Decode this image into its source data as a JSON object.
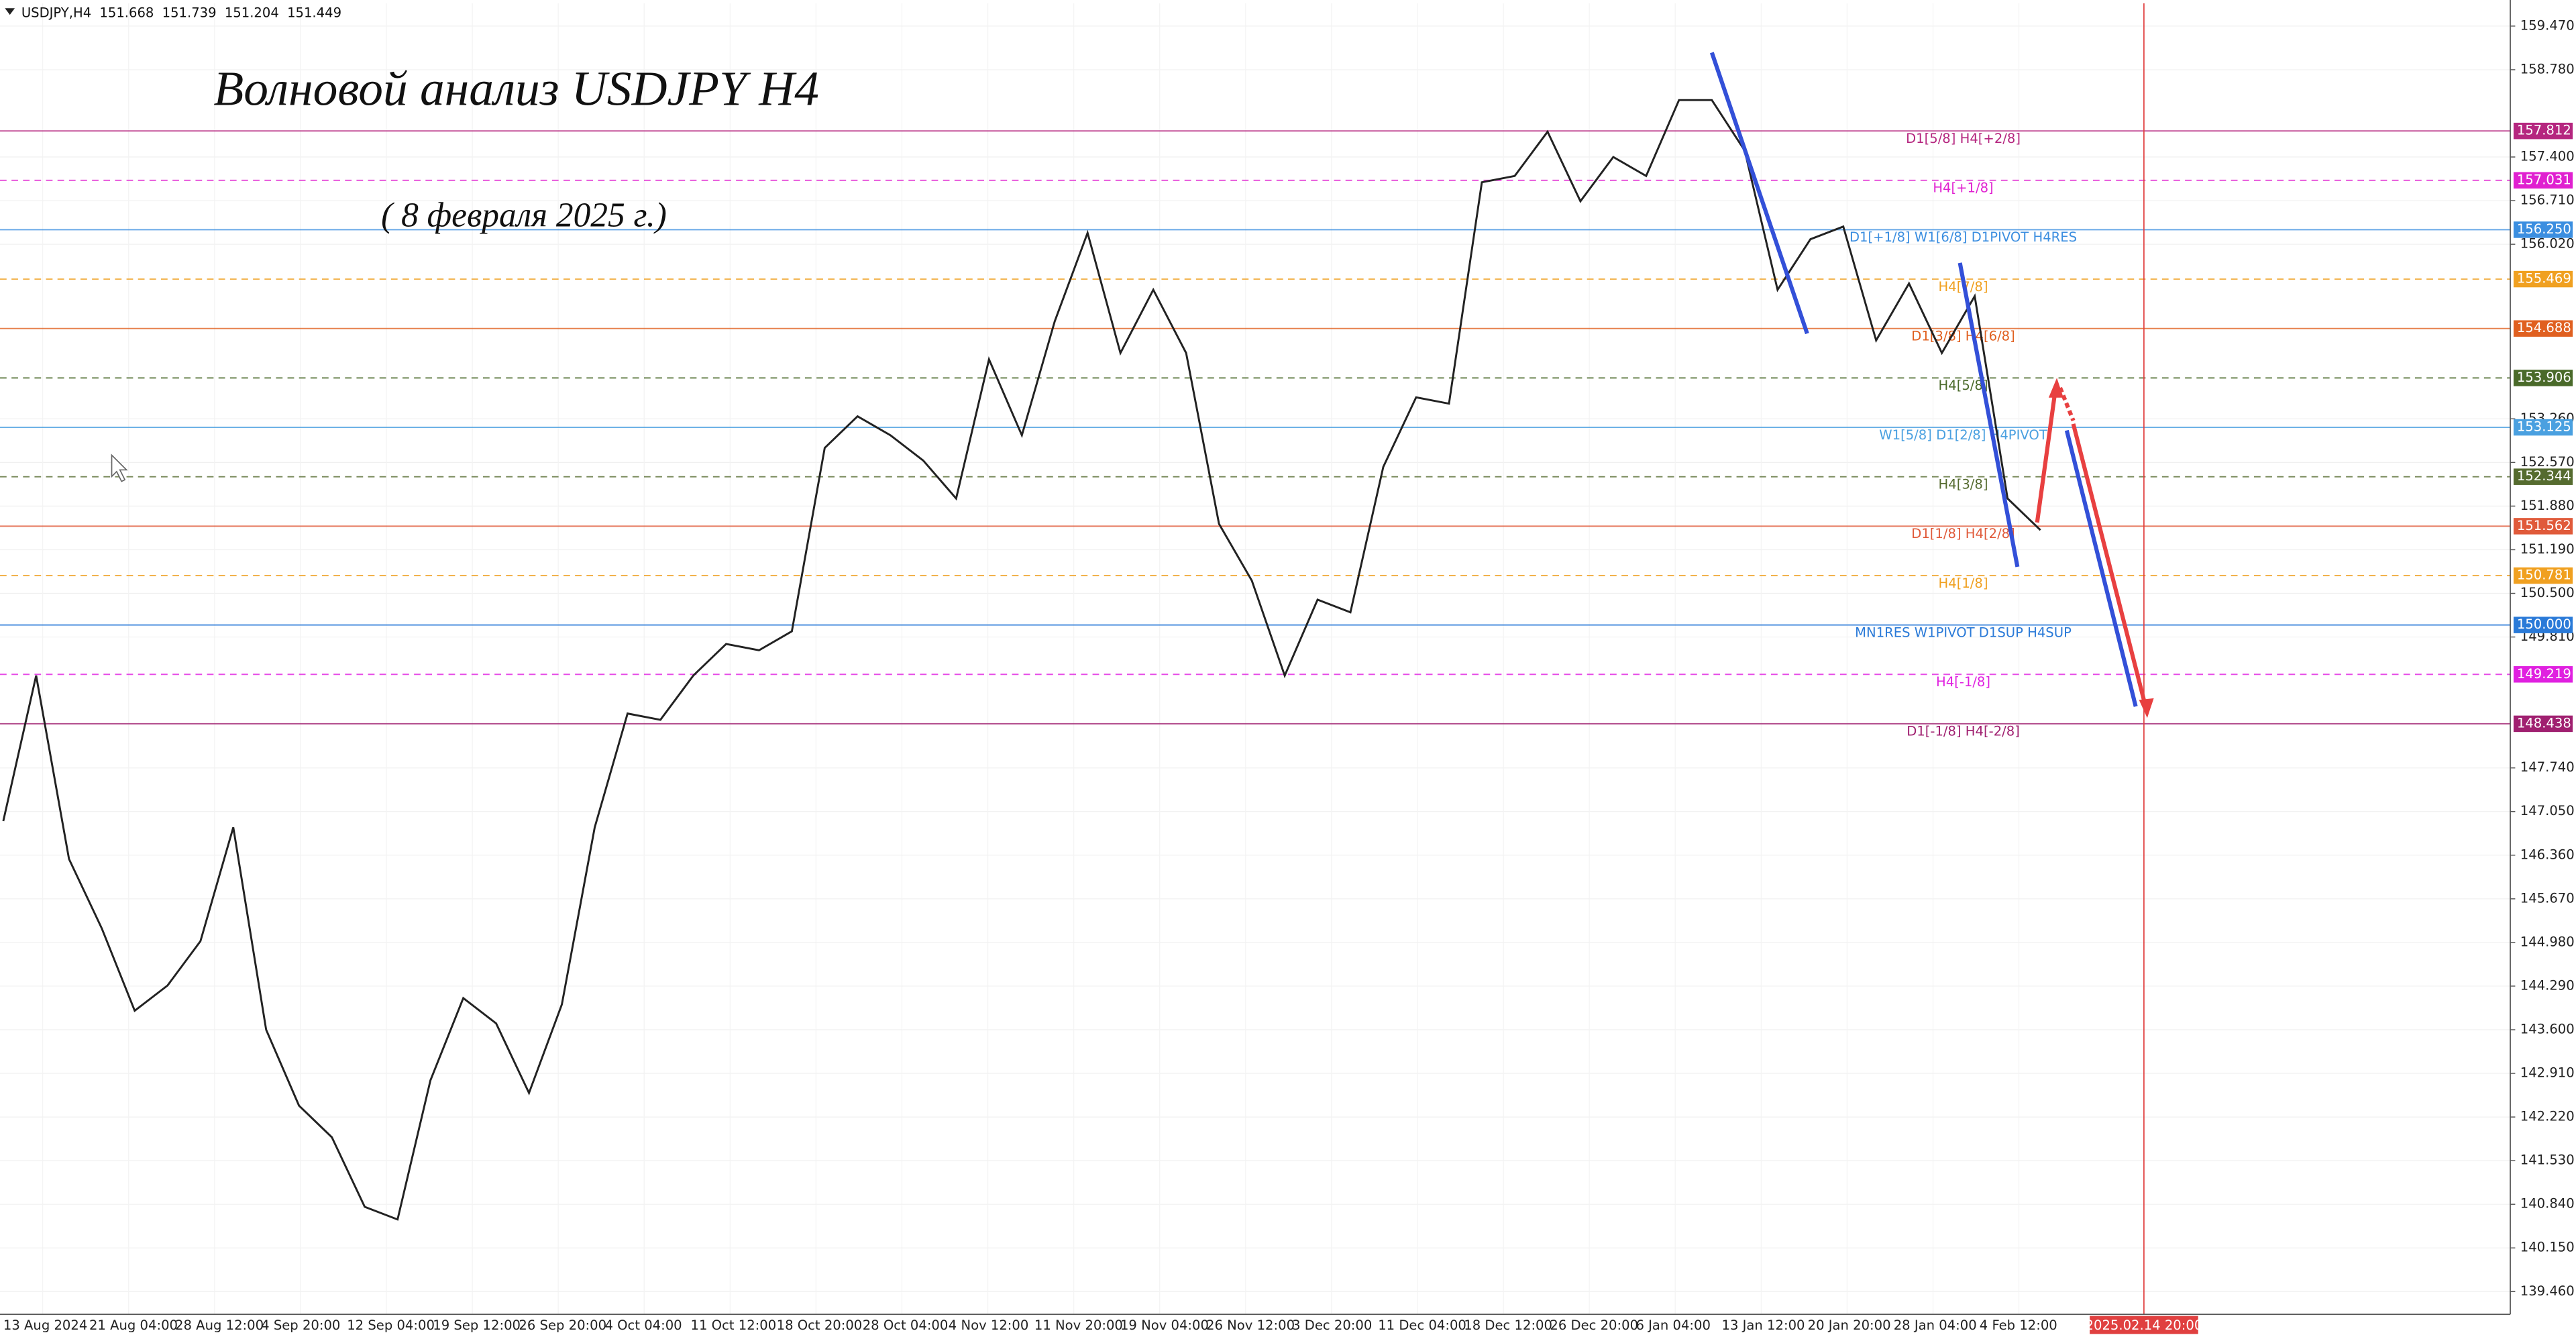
{
  "chart_data": {
    "type": "line",
    "symbol": "USDJPY,H4",
    "ohlc": [
      151.668,
      151.739,
      151.204,
      151.449
    ],
    "title": "Волновой анализ USDJPY H4",
    "subtitle": "( 8 февраля 2025 г.)",
    "series": [
      {
        "name": "USDJPY",
        "color": "#222222",
        "values": [
          146.9,
          149.2,
          146.3,
          145.2,
          143.9,
          144.3,
          145.0,
          146.8,
          143.6,
          142.4,
          141.9,
          140.8,
          140.6,
          142.8,
          144.1,
          143.7,
          142.6,
          144.0,
          146.8,
          148.6,
          148.5,
          149.2,
          149.7,
          149.6,
          149.9,
          152.8,
          153.3,
          153.0,
          152.6,
          152.0,
          154.2,
          153.0,
          154.8,
          156.2,
          154.3,
          155.3,
          154.3,
          151.6,
          150.7,
          149.2,
          150.4,
          150.2,
          152.5,
          153.6,
          153.5,
          157.0,
          157.1,
          157.8,
          156.7,
          157.4,
          157.1,
          158.3,
          158.3,
          157.5,
          155.3,
          156.1,
          156.3,
          154.5,
          155.4,
          154.3,
          155.2,
          152.0,
          151.5
        ]
      }
    ],
    "ylim": [
      139.1,
      159.83
    ],
    "yticks": [
      {
        "value": 139.46,
        "label": "139.460"
      },
      {
        "value": 140.15,
        "label": "140.150"
      },
      {
        "value": 140.84,
        "label": "140.840"
      },
      {
        "value": 141.53,
        "label": "141.530"
      },
      {
        "value": 142.22,
        "label": "142.220"
      },
      {
        "value": 142.91,
        "label": "142.910"
      },
      {
        "value": 143.6,
        "label": "143.600"
      },
      {
        "value": 144.29,
        "label": "144.290"
      },
      {
        "value": 144.98,
        "label": "144.980"
      },
      {
        "value": 145.67,
        "label": "145.670"
      },
      {
        "value": 146.36,
        "label": "146.360"
      },
      {
        "value": 147.05,
        "label": "147.050"
      },
      {
        "value": 147.74,
        "label": "147.740"
      },
      {
        "value": 149.81,
        "label": "149.810"
      },
      {
        "value": 150.5,
        "label": "150.500"
      },
      {
        "value": 151.19,
        "label": "151.190"
      },
      {
        "value": 151.88,
        "label": "151.880"
      },
      {
        "value": 152.57,
        "label": "152.570"
      },
      {
        "value": 153.26,
        "label": "153.260"
      },
      {
        "value": 156.02,
        "label": "156.020"
      },
      {
        "value": 156.71,
        "label": "156.710"
      },
      {
        "value": 157.4,
        "label": "157.400"
      },
      {
        "value": 158.78,
        "label": "158.780"
      },
      {
        "value": 159.47,
        "label": "159.470"
      }
    ],
    "xtick_labels": [
      "13 Aug 2024",
      "21 Aug 04:00",
      "28 Aug 12:00",
      "4 Sep 20:00",
      "12 Sep 04:00",
      "19 Sep 12:00",
      "26 Sep 20:00",
      "4 Oct 04:00",
      "11 Oct 12:00",
      "18 Oct 20:00",
      "28 Oct 04:00",
      "4 Nov 12:00",
      "11 Nov 20:00",
      "19 Nov 04:00",
      "26 Nov 12:00",
      "3 Dec 20:00",
      "11 Dec 04:00",
      "18 Dec 12:00",
      "26 Dec 20:00",
      "6 Jan 04:00",
      "13 Jan 12:00",
      "20 Jan 20:00",
      "28 Jan 04:00",
      "4 Feb 12:00"
    ],
    "cursor_time": "2025.02.14 20:00",
    "levels": [
      {
        "name": "D1[5/8] H4[+2/8]",
        "value": 157.812,
        "value_label": "157.812",
        "color": "#b5267f",
        "dashed": false
      },
      {
        "name": "H4[+1/8]",
        "value": 157.031,
        "value_label": "157.031",
        "color": "#e020d0",
        "dashed": true
      },
      {
        "name": "D1[+1/8] W1[6/8] D1PIVOT H4RES",
        "value": 156.25,
        "value_label": "156.250",
        "color": "#3b8ee0",
        "dashed": false
      },
      {
        "name": "H4[7/8]",
        "value": 155.469,
        "value_label": "155.469",
        "color": "#f0a020",
        "dashed": true
      },
      {
        "name": "D1[3/8] H4[6/8]",
        "value": 154.688,
        "value_label": "154.688",
        "color": "#e06020",
        "dashed": false
      },
      {
        "name": "H4[5/8]",
        "value": 153.906,
        "value_label": "153.906",
        "color": "#4a6a2a",
        "dashed": true
      },
      {
        "name": "W1[5/8] D1[2/8] H4PIVOT",
        "value": 153.125,
        "value_label": "153.125",
        "color": "#4aa0e0",
        "dashed": false
      },
      {
        "name": "H4[3/8]",
        "value": 152.344,
        "value_label": "152.344",
        "color": "#556b2f",
        "dashed": true
      },
      {
        "name": "D1[1/8] H4[2/8]",
        "value": 151.562,
        "value_label": "151.562",
        "color": "#e05a3a",
        "dashed": false
      },
      {
        "name": "H4[1/8]",
        "value": 150.781,
        "value_label": "150.781",
        "color": "#f0a020",
        "dashed": true
      },
      {
        "name": "MN1RES W1PIVOT D1SUP H4SUP",
        "value": 150,
        "value_label": "150.000",
        "color": "#2a7ad8",
        "dashed": false
      },
      {
        "name": "H4[-1/8]",
        "value": 149.219,
        "value_label": "149.219",
        "color": "#e020e0",
        "dashed": true
      },
      {
        "name": "D1[-1/8] H4[-2/8]",
        "value": 148.438,
        "value_label": "148.438",
        "color": "#a02070",
        "dashed": false
      }
    ],
    "grid": true
  }
}
